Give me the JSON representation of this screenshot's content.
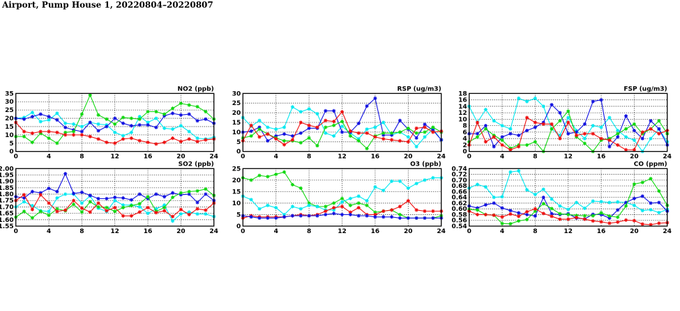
{
  "title": "Airport, Pump House 1, 20220804–20220807",
  "colors": {
    "cyan": "#00e8f0",
    "blue": "#1010e0",
    "green": "#10d810",
    "red": "#ee1010"
  },
  "chart_data": [
    {
      "type": "line",
      "title": "NO2 (ppb)",
      "xlim": [
        0,
        24
      ],
      "xticks": [
        0,
        4,
        8,
        12,
        16,
        20,
        24
      ],
      "ylim": [
        0,
        35
      ],
      "yticks": [
        0,
        5,
        10,
        15,
        20,
        25,
        30,
        35
      ],
      "ydec": 0,
      "grid": true,
      "series": [
        {
          "name": "cyan",
          "color": "cyan",
          "values": [
            20,
            20.5,
            23.5,
            18,
            19,
            23,
            17,
            16.5,
            15,
            17.5,
            16.5,
            16,
            11.5,
            9.5,
            11.5,
            21,
            17.5,
            20,
            14,
            13.5,
            15.5,
            12,
            8,
            7.5,
            8.5
          ]
        },
        {
          "name": "blue",
          "color": "blue",
          "values": [
            20,
            19.5,
            21,
            22.5,
            21,
            19,
            14.5,
            13,
            12,
            17.5,
            12.5,
            15,
            20,
            17,
            15.5,
            16,
            16,
            14.5,
            21.5,
            23,
            22,
            22.5,
            18.5,
            19.5,
            17
          ]
        },
        {
          "name": "green",
          "color": "green",
          "values": [
            9,
            9,
            5.5,
            11,
            8,
            5,
            11.5,
            12,
            22.5,
            34,
            22,
            19.5,
            16.5,
            20.5,
            20,
            19.5,
            24,
            24,
            22.5,
            26,
            29,
            28,
            27,
            24,
            19.5
          ]
        },
        {
          "name": "red",
          "color": "red",
          "values": [
            17.5,
            12,
            11,
            12,
            12,
            11.5,
            10,
            10,
            10,
            9,
            7.5,
            5.5,
            5,
            7.5,
            8,
            6.5,
            5.5,
            4.5,
            5.5,
            8,
            6,
            7.5,
            6,
            7,
            7.5
          ]
        }
      ]
    },
    {
      "type": "line",
      "title": "RSP (ug/m3)",
      "xlim": [
        0,
        24
      ],
      "xticks": [
        0,
        4,
        8,
        12,
        16,
        20,
        24
      ],
      "ylim": [
        0,
        30
      ],
      "yticks": [
        0,
        5,
        10,
        15,
        20,
        25,
        30
      ],
      "ydec": 0,
      "grid": true,
      "series": [
        {
          "name": "cyan",
          "color": "cyan",
          "values": [
            17.5,
            13,
            16,
            12.5,
            11.5,
            12.5,
            23,
            20.5,
            22,
            19.5,
            9.5,
            8,
            13,
            9.5,
            6.5,
            11.5,
            12.5,
            15,
            8.5,
            10,
            7.5,
            2.5,
            7.5,
            11.5,
            6
          ]
        },
        {
          "name": "blue",
          "color": "blue",
          "values": [
            10,
            10.5,
            12.5,
            5.5,
            8,
            9,
            8,
            9.5,
            12,
            12,
            21,
            21,
            10,
            10,
            14.5,
            23.5,
            27.5,
            8.5,
            8.5,
            16,
            11.5,
            7,
            14,
            11,
            6
          ]
        },
        {
          "name": "green",
          "color": "green",
          "values": [
            7,
            8,
            11.5,
            9,
            7,
            5.5,
            5.5,
            4.5,
            7,
            3,
            12.5,
            13.5,
            15.5,
            8,
            5.5,
            1.5,
            8,
            9.5,
            9.5,
            10,
            12,
            9.5,
            10,
            12.5,
            10
          ]
        },
        {
          "name": "red",
          "color": "red",
          "values": [
            5.5,
            13.5,
            7.5,
            9,
            6.5,
            3.5,
            6,
            15,
            13.5,
            12.5,
            16,
            15.5,
            20.5,
            10.5,
            9.5,
            9.5,
            7.5,
            6.5,
            6,
            5.5,
            5,
            12,
            12.5,
            10,
            10.5
          ]
        }
      ]
    },
    {
      "type": "line",
      "title": "FSP (ug/m3)",
      "xlim": [
        0,
        24
      ],
      "xticks": [
        0,
        4,
        8,
        12,
        16,
        20,
        24
      ],
      "ylim": [
        0,
        18
      ],
      "yticks": [
        0,
        2,
        4,
        6,
        8,
        10,
        12,
        14,
        16,
        18
      ],
      "ydec": 0,
      "grid": true,
      "series": [
        {
          "name": "cyan",
          "color": "cyan",
          "values": [
            14,
            9,
            13,
            9.5,
            8,
            7,
            16.5,
            15.5,
            16.5,
            14,
            7,
            5,
            10.5,
            6.5,
            4,
            8,
            7.5,
            10.5,
            6.5,
            4.5,
            3.5,
            0,
            4,
            7,
            3
          ]
        },
        {
          "name": "blue",
          "color": "blue",
          "values": [
            5.5,
            5.5,
            8,
            1.5,
            4.5,
            5.5,
            5,
            6.5,
            7.5,
            9,
            14.5,
            12,
            5.5,
            6,
            8.5,
            15.5,
            16,
            1.5,
            4.5,
            11,
            6.5,
            4,
            9.5,
            7,
            2
          ]
        },
        {
          "name": "green",
          "color": "green",
          "values": [
            3,
            4.5,
            7,
            5,
            3.5,
            1,
            2,
            2,
            3,
            0,
            7,
            9.5,
            12.5,
            4.5,
            2.5,
            0,
            3.5,
            4,
            5.5,
            7,
            8.5,
            5.5,
            7,
            9.5,
            5.5
          ]
        },
        {
          "name": "red",
          "color": "red",
          "values": [
            2,
            9,
            3,
            4.5,
            2,
            0.5,
            1.5,
            10.5,
            9,
            8.5,
            8.5,
            4,
            9,
            5,
            5.5,
            5.5,
            4,
            3.5,
            2,
            0.5,
            0.5,
            6,
            7,
            5.5,
            6.5
          ]
        }
      ]
    },
    {
      "type": "line",
      "title": "SO2 (ppb)",
      "xlim": [
        0,
        24
      ],
      "xticks": [
        0,
        4,
        8,
        12,
        16,
        20,
        24
      ],
      "ylim": [
        1.55,
        2.0
      ],
      "yticks": [
        1.55,
        1.6,
        1.65,
        1.7,
        1.75,
        1.8,
        1.85,
        1.9,
        1.95,
        2.0
      ],
      "ydec": 2,
      "grid": true,
      "series": [
        {
          "name": "cyan",
          "color": "cyan",
          "values": [
            1.7,
            1.74,
            1.71,
            1.67,
            1.665,
            1.77,
            1.8,
            1.8,
            1.73,
            1.785,
            1.69,
            1.665,
            1.75,
            1.715,
            1.715,
            1.7,
            1.65,
            1.685,
            1.715,
            1.59,
            1.645,
            1.66,
            1.645,
            1.645,
            1.625
          ]
        },
        {
          "name": "blue",
          "color": "blue",
          "values": [
            1.78,
            1.77,
            1.82,
            1.81,
            1.845,
            1.82,
            1.96,
            1.805,
            1.815,
            1.79,
            1.765,
            1.765,
            1.775,
            1.77,
            1.755,
            1.8,
            1.765,
            1.8,
            1.78,
            1.81,
            1.795,
            1.8,
            1.735,
            1.8,
            1.75
          ]
        },
        {
          "name": "green",
          "color": "green",
          "values": [
            1.62,
            1.665,
            1.615,
            1.665,
            1.635,
            1.685,
            1.67,
            1.72,
            1.66,
            1.74,
            1.7,
            1.695,
            1.665,
            1.695,
            1.71,
            1.725,
            1.78,
            1.665,
            1.695,
            1.775,
            1.81,
            1.82,
            1.825,
            1.84,
            1.79
          ]
        },
        {
          "name": "red",
          "color": "red",
          "values": [
            1.75,
            1.795,
            1.68,
            1.795,
            1.73,
            1.665,
            1.675,
            1.75,
            1.69,
            1.66,
            1.73,
            1.67,
            1.695,
            1.63,
            1.63,
            1.66,
            1.695,
            1.655,
            1.67,
            1.625,
            1.68,
            1.64,
            1.685,
            1.675,
            1.73
          ]
        }
      ]
    },
    {
      "type": "line",
      "title": "O3 (ppb)",
      "xlim": [
        0,
        24
      ],
      "xticks": [
        0,
        4,
        8,
        12,
        16,
        20,
        24
      ],
      "ylim": [
        0,
        25
      ],
      "yticks": [
        0,
        5,
        10,
        15,
        20,
        25
      ],
      "ydec": 0,
      "grid": true,
      "series": [
        {
          "name": "green",
          "color": "green",
          "values": [
            21,
            20,
            22,
            21.5,
            22.5,
            23.5,
            18,
            16.5,
            10,
            8.5,
            8.5,
            10,
            12,
            9,
            10,
            9,
            6,
            6.5,
            7,
            5,
            3.5,
            3.5,
            3.5,
            3.5,
            4.5
          ]
        },
        {
          "name": "cyan",
          "color": "cyan",
          "values": [
            13,
            11.5,
            7.5,
            9,
            8,
            5,
            8.5,
            7.5,
            9,
            8.5,
            7,
            7,
            10.5,
            12,
            13,
            11,
            17,
            15.5,
            19.5,
            19.5,
            16.5,
            18.5,
            20,
            21,
            21
          ]
        },
        {
          "name": "red",
          "color": "red",
          "values": [
            3.5,
            4.5,
            4,
            4,
            4,
            4,
            4.5,
            5,
            4.5,
            5,
            6.5,
            8,
            8.5,
            6,
            8,
            5,
            5,
            6.5,
            7,
            8.5,
            11,
            7,
            6.5,
            6.5,
            6.5
          ]
        },
        {
          "name": "blue",
          "color": "blue",
          "values": [
            4.5,
            4,
            3.5,
            3.5,
            3.5,
            4,
            4.5,
            4.5,
            4.5,
            4.5,
            5,
            5.5,
            5,
            5,
            4.5,
            4.5,
            4,
            4,
            4,
            3.5,
            3.5,
            3.5,
            3.5,
            3.5,
            3.5
          ]
        }
      ]
    },
    {
      "type": "line",
      "title": "CO (ppm)",
      "xlim": [
        0,
        24
      ],
      "xticks": [
        0,
        4,
        8,
        12,
        16,
        20,
        24
      ],
      "ylim": [
        0.54,
        0.74
      ],
      "yticks": [
        0.54,
        0.56,
        0.58,
        0.6,
        0.62,
        0.64,
        0.66,
        0.68,
        0.7,
        0.72,
        0.74
      ],
      "ydec": 2,
      "grid": true,
      "series": [
        {
          "name": "cyan",
          "color": "cyan",
          "values": [
            0.672,
            0.685,
            0.676,
            0.64,
            0.642,
            0.728,
            0.732,
            0.666,
            0.65,
            0.668,
            0.634,
            0.61,
            0.598,
            0.622,
            0.602,
            0.627,
            0.625,
            0.622,
            0.624,
            0.622,
            0.612,
            0.594,
            0.597,
            0.587,
            0.598
          ]
        },
        {
          "name": "blue",
          "color": "blue",
          "values": [
            0.61,
            0.603,
            0.614,
            0.62,
            0.603,
            0.594,
            0.586,
            0.58,
            0.575,
            0.64,
            0.583,
            0.58,
            0.583,
            0.568,
            0.565,
            0.581,
            0.58,
            0.568,
            0.596,
            0.622,
            0.636,
            0.644,
            0.62,
            0.622,
            0.592
          ]
        },
        {
          "name": "green",
          "color": "green",
          "values": [
            0.598,
            0.596,
            0.58,
            0.578,
            0.549,
            0.548,
            0.558,
            0.563,
            0.592,
            0.618,
            0.601,
            0.583,
            0.58,
            0.577,
            0.576,
            0.576,
            0.586,
            0.575,
            0.571,
            0.61,
            0.686,
            0.692,
            0.705,
            0.662,
            0.612
          ]
        },
        {
          "name": "red",
          "color": "red",
          "values": [
            0.592,
            0.58,
            0.58,
            0.578,
            0.572,
            0.582,
            0.574,
            0.59,
            0.6,
            0.584,
            0.574,
            0.564,
            0.564,
            0.57,
            0.564,
            0.558,
            0.555,
            0.55,
            0.554,
            0.561,
            0.559,
            0.547,
            0.545,
            0.55,
            0.552
          ]
        }
      ]
    }
  ]
}
